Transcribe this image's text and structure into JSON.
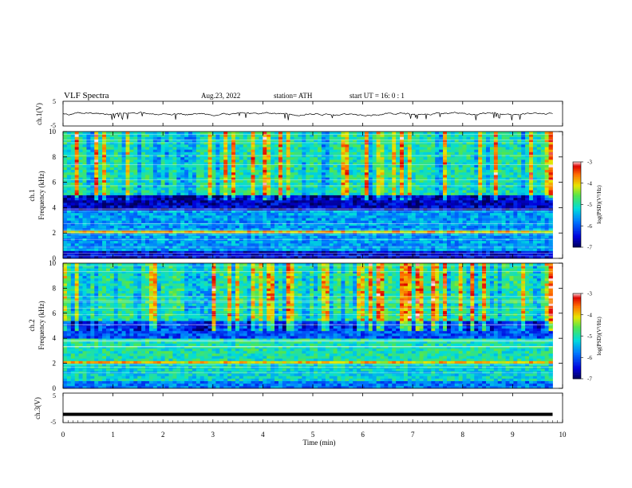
{
  "header": {
    "title": "VLF  Spectra",
    "date": "Aug.23, 2022",
    "station": "station= ATH",
    "start": "start  UT  =   16: 0  : 1"
  },
  "chart_data": [
    {
      "type": "line",
      "title": "",
      "ylabel": "ch.1(V)",
      "ylim": [
        -5,
        5
      ],
      "yticks": [
        "5",
        "-5"
      ],
      "series": [
        {
          "values_description_note": "",
          "mean": 0,
          "approx_range": [
            -1.8,
            1.0
          ]
        }
      ]
    },
    {
      "type": "heatmap",
      "ylabel": [
        "ch.1",
        "Frequency  (kHz)"
      ],
      "ylim": [
        0,
        10
      ],
      "yticks": [
        "0",
        "2",
        "4",
        "6",
        "8",
        "10"
      ],
      "colorbar": {
        "label": "log(PSD)(V²/Hz)",
        "range": [
          -7,
          -3
        ],
        "ticks": [
          "-3",
          "-4",
          "-5",
          "-6",
          "-7"
        ]
      },
      "bands": [
        {
          "from": 0,
          "to": 0.6,
          "level": -6.5
        },
        {
          "from": 0.6,
          "to": 2.0,
          "level": -5.6
        },
        {
          "from": 2.0,
          "to": 2.3,
          "level": -4.0
        },
        {
          "from": 2.3,
          "to": 3.8,
          "level": -5.6
        },
        {
          "from": 3.8,
          "to": 5.0,
          "level": -6.6
        },
        {
          "from": 5.0,
          "to": 10,
          "level": -5.0
        }
      ]
    },
    {
      "type": "heatmap",
      "ylabel": [
        "ch.2",
        "Frequency  (kHz)"
      ],
      "ylim": [
        0,
        10
      ],
      "yticks": [
        "0",
        "2",
        "4",
        "6",
        "8",
        "10"
      ],
      "colorbar": {
        "label": "log(PSD)(V²/Hz)",
        "range": [
          -7,
          -3
        ],
        "ticks": [
          "-3",
          "-4",
          "-5",
          "-6",
          "-7"
        ]
      },
      "bands": [
        {
          "from": 0,
          "to": 0.6,
          "level": -5.8
        },
        {
          "from": 0.6,
          "to": 2.0,
          "level": -5.2
        },
        {
          "from": 2.0,
          "to": 2.3,
          "level": -4.0
        },
        {
          "from": 2.3,
          "to": 4.0,
          "level": -5.0
        },
        {
          "from": 4.0,
          "to": 5.5,
          "level": -6.0
        },
        {
          "from": 5.5,
          "to": 10,
          "level": -4.9
        }
      ]
    },
    {
      "type": "line",
      "ylabel": "ch.3(V)",
      "ylim": [
        -5,
        5
      ],
      "yticks": [
        "5",
        "-5"
      ],
      "series": [
        {
          "constant": -2.2
        }
      ]
    }
  ],
  "xaxis": {
    "label": "Time  (min)",
    "range": [
      0,
      10
    ],
    "ticks": [
      "0",
      "1",
      "2",
      "3",
      "4",
      "5",
      "6",
      "7",
      "8",
      "9",
      "10"
    ],
    "data_end": 9.8
  }
}
